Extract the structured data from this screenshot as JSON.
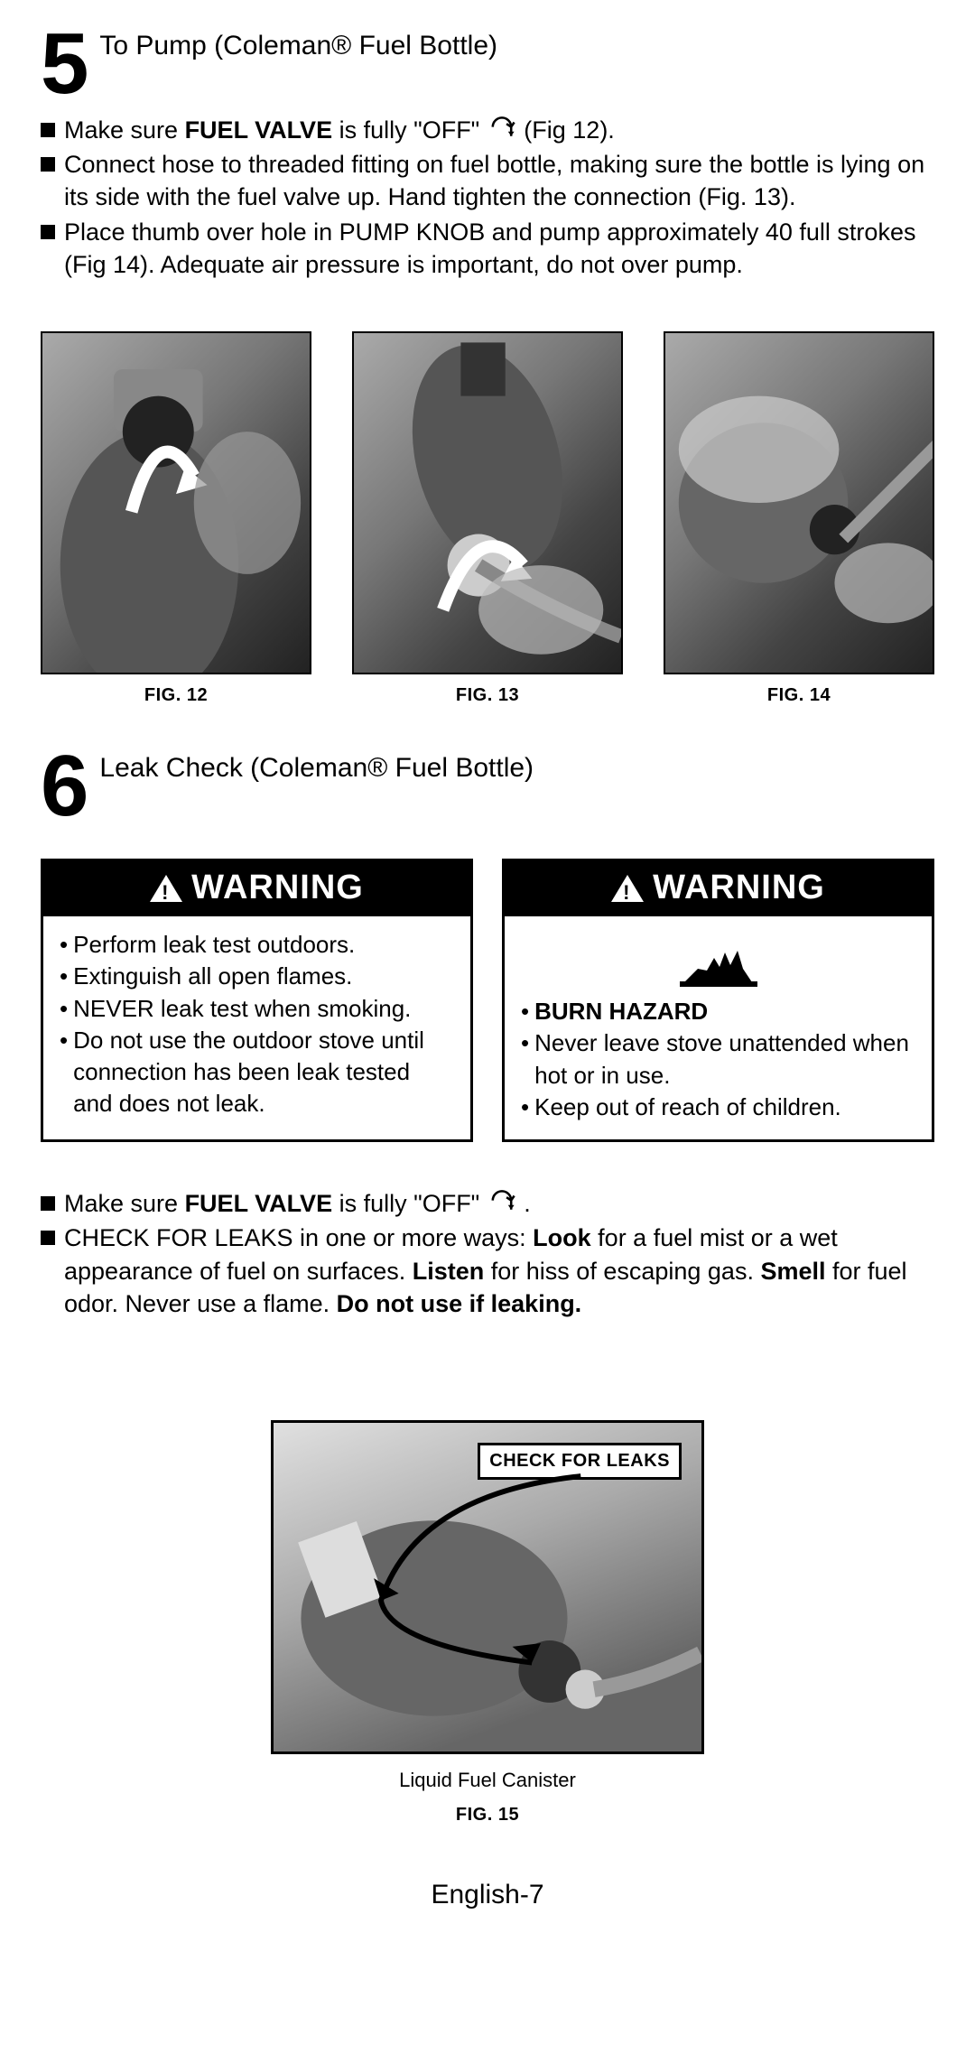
{
  "step5": {
    "number": "5",
    "title": "To Pump (Coleman® Fuel Bottle)",
    "bullets": [
      {
        "pre": "Make sure ",
        "bold1": "FUEL VALVE",
        "mid": " is fully \"OFF\" ",
        "hasArrow": true,
        "post": " (Fig 12)."
      },
      {
        "text": "Connect hose to threaded fitting on fuel bottle, making sure the bottle is lying on its side with the fuel valve up.  Hand tighten the connection (Fig. 13)."
      },
      {
        "text": "Place thumb over hole in PUMP KNOB and pump approximately 40 full strokes (Fig 14).  Adequate air pressure is important, do not over pump."
      }
    ],
    "figs": [
      {
        "cap": "FIG. 12"
      },
      {
        "cap": "FIG. 13"
      },
      {
        "cap": "FIG. 14"
      }
    ]
  },
  "step6": {
    "number": "6",
    "title": "Leak Check (Coleman® Fuel Bottle)"
  },
  "warn1": {
    "head": "WARNING",
    "items": [
      "Perform leak test outdoors.",
      "Extinguish all open flames.",
      "NEVER leak test when smoking.",
      "Do not use the outdoor stove until connection has been leak tested and does not leak."
    ]
  },
  "warn2": {
    "head": "WARNING",
    "burnHazard": "BURN HAZARD",
    "items": [
      "Never leave stove unattended when hot or in use.",
      "Keep out of reach of children."
    ]
  },
  "leakBullets": [
    {
      "pre": "Make sure ",
      "bold1": "FUEL VALVE",
      "mid": " is fully \"OFF\" ",
      "hasArrow": true,
      "post": " ."
    },
    {
      "html": "CHECK FOR LEAKS in one or more ways:  <b>Look</b> for a fuel mist or a wet appearance of fuel on surfaces.  <b>Listen</b> for hiss of escaping gas.  <b>Smell</b> for fuel odor.  Never use a flame.  <b>Do not use if leaking.</b>"
    }
  ],
  "check": {
    "label": "CHECK FOR LEAKS",
    "cap1": "Liquid Fuel Canister",
    "cap2": "FIG. 15"
  },
  "footer": "English-7"
}
